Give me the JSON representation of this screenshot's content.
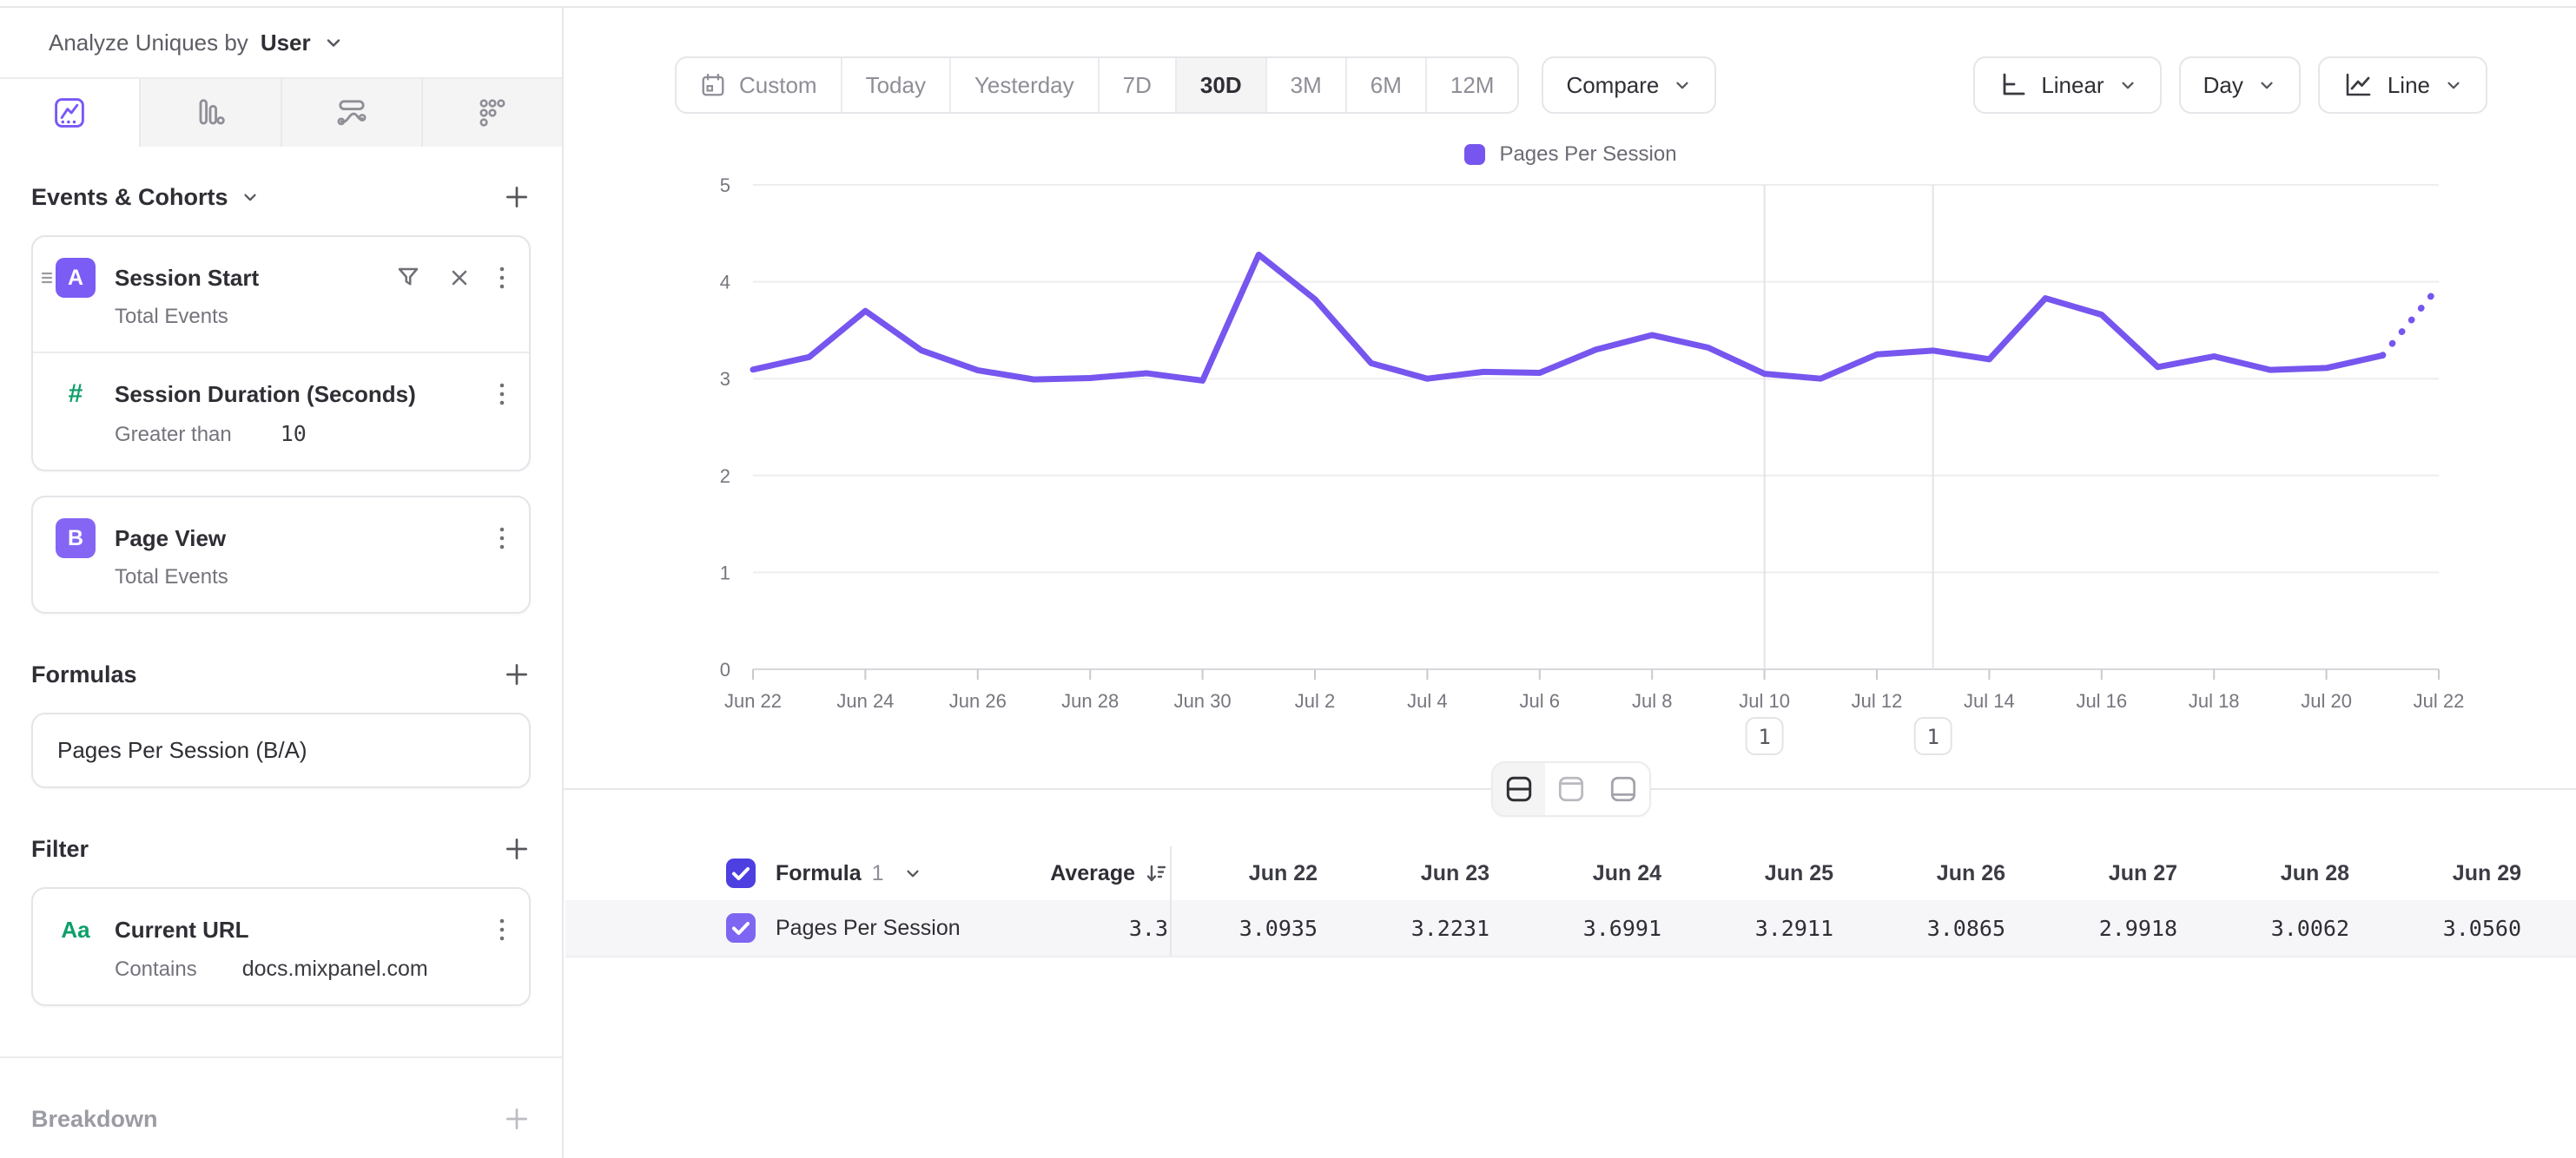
{
  "header": {
    "analyze_by_label": "Analyze Uniques by",
    "analyze_by_value": "User"
  },
  "sidebar": {
    "tabs": [
      {
        "icon": "insights-line-chart",
        "active": true
      },
      {
        "icon": "funnels-bars",
        "active": false
      },
      {
        "icon": "flows-path",
        "active": false
      },
      {
        "icon": "retention-dots",
        "active": false
      }
    ],
    "events_title": "Events & Cohorts",
    "events": [
      {
        "badge": "A",
        "title": "Session Start",
        "measure": "Total Events",
        "nested": {
          "icon_glyph": "#",
          "title": "Session Duration (Seconds)",
          "operator": "Greater than",
          "value": "10"
        }
      },
      {
        "badge": "B",
        "title": "Page View",
        "measure": "Total Events"
      }
    ],
    "formulas_title": "Formulas",
    "formula": {
      "label": "Pages Per Session (B/A)"
    },
    "filter_title": "Filter",
    "filter": {
      "icon_glyph": "Aa",
      "title": "Current URL",
      "operator": "Contains",
      "value": "docs.mixpanel.com"
    },
    "breakdown_title": "Breakdown"
  },
  "toolbar": {
    "ranges": [
      "Custom",
      "Today",
      "Yesterday",
      "7D",
      "30D",
      "3M",
      "6M",
      "12M"
    ],
    "active_range": "30D",
    "compare_label": "Compare",
    "scale_label": "Linear",
    "granularity_label": "Day",
    "chart_type_label": "Line"
  },
  "chart_data": {
    "type": "line",
    "title": "",
    "legend": [
      "Pages Per Session"
    ],
    "legend_position": "top-center",
    "x": [
      "Jun 22",
      "Jun 23",
      "Jun 24",
      "Jun 25",
      "Jun 26",
      "Jun 27",
      "Jun 28",
      "Jun 29",
      "Jun 30",
      "Jul 1",
      "Jul 2",
      "Jul 3",
      "Jul 4",
      "Jul 5",
      "Jul 6",
      "Jul 7",
      "Jul 8",
      "Jul 9",
      "Jul 10",
      "Jul 11",
      "Jul 12",
      "Jul 13",
      "Jul 14",
      "Jul 15",
      "Jul 16",
      "Jul 17",
      "Jul 18",
      "Jul 19",
      "Jul 20",
      "Jul 21",
      "Jul 22"
    ],
    "series": [
      {
        "name": "Pages Per Session",
        "values": [
          3.0935,
          3.2231,
          3.6991,
          3.2911,
          3.0865,
          2.9918,
          3.0062,
          3.056,
          2.98,
          4.28,
          3.82,
          3.16,
          3.0,
          3.07,
          3.06,
          3.3,
          3.45,
          3.32,
          3.05,
          3.0,
          3.25,
          3.29,
          3.2,
          3.83,
          3.66,
          3.12,
          3.23,
          3.09,
          3.11,
          3.24,
          3.95
        ]
      }
    ],
    "ylim": [
      0,
      5
    ],
    "yticks": [
      0,
      1,
      2,
      3,
      4,
      5
    ],
    "x_tick_every": 2,
    "grid": true,
    "incomplete_tail_dotted": true,
    "line_color": "#7656EE"
  },
  "annotations": [
    {
      "label": "1",
      "x_index": 18,
      "x_label": "Jul 10"
    },
    {
      "label": "1",
      "x_index": 21,
      "x_label": "Jul 13"
    }
  ],
  "table": {
    "group_label": "Formula",
    "group_number": "1",
    "average_label": "Average",
    "columns": [
      "Jun 22",
      "Jun 23",
      "Jun 24",
      "Jun 25",
      "Jun 26",
      "Jun 27",
      "Jun 28",
      "Jun 29"
    ],
    "rows": [
      {
        "name": "Pages Per Session",
        "checked": true,
        "average": "3.3",
        "values": [
          "3.0935",
          "3.2231",
          "3.6991",
          "3.2911",
          "3.0865",
          "2.9918",
          "3.0062",
          "3.0560"
        ]
      }
    ]
  },
  "colors": {
    "accent_purple": "#7656EE",
    "badge_purple": "#7B5CF5",
    "badge_purple_b": "#8566F4",
    "checkbox_header": "#4D3FE0",
    "checkbox_row": "#7E66F2",
    "icon_green": "#0E9F6A"
  }
}
